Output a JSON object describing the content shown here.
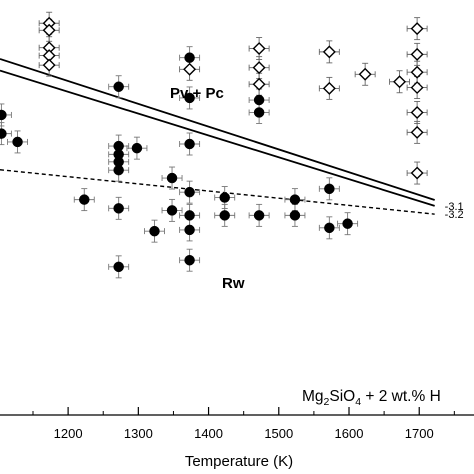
{
  "chart_data": {
    "type": "scatter",
    "title": "",
    "xlabel": "Temperature (K)",
    "ylabel": "",
    "xlim": [
      1103,
      1778
    ],
    "ylim": [
      0,
      1
    ],
    "x_ticks": [
      1200,
      1300,
      1400,
      1500,
      1600,
      1700
    ],
    "grid": false,
    "legend": "none",
    "annotations": {
      "region_upper": "Pv + Pc",
      "region_lower": "Rw",
      "composition_prefix": "Mg",
      "composition_sub1": "2",
      "composition_mid": "SiO",
      "composition_sub2": "4",
      "composition_suffix": " + 2 wt.% H"
    },
    "lines": [
      {
        "label": "-3.1",
        "style": "solid",
        "points": [
          [
            1103,
            0.83
          ],
          [
            1722,
            0.504
          ]
        ]
      },
      {
        "label": "",
        "style": "solid",
        "points": [
          [
            1103,
            0.858
          ],
          [
            1722,
            0.518
          ]
        ]
      },
      {
        "label": "-3.2",
        "style": "dashed",
        "points": [
          [
            1103,
            0.591
          ],
          [
            1722,
            0.484
          ]
        ]
      }
    ],
    "series": [
      {
        "marker": "filled-circle",
        "color": "#000000",
        "points": [
          [
            1105,
            0.723
          ],
          [
            1105,
            0.678
          ],
          [
            1128,
            0.658
          ],
          [
            1223,
            0.519
          ],
          [
            1272,
            0.791
          ],
          [
            1272,
            0.648
          ],
          [
            1272,
            0.628
          ],
          [
            1272,
            0.61
          ],
          [
            1272,
            0.59
          ],
          [
            1272,
            0.498
          ],
          [
            1272,
            0.357
          ],
          [
            1298,
            0.643
          ],
          [
            1323,
            0.443
          ],
          [
            1348,
            0.571
          ],
          [
            1348,
            0.493
          ],
          [
            1373,
            0.861
          ],
          [
            1373,
            0.764
          ],
          [
            1373,
            0.653
          ],
          [
            1373,
            0.537
          ],
          [
            1373,
            0.481
          ],
          [
            1373,
            0.446
          ],
          [
            1373,
            0.373
          ],
          [
            1423,
            0.524
          ],
          [
            1423,
            0.481
          ],
          [
            1472,
            0.759
          ],
          [
            1472,
            0.729
          ],
          [
            1472,
            0.481
          ],
          [
            1523,
            0.519
          ],
          [
            1523,
            0.481
          ],
          [
            1572,
            0.545
          ],
          [
            1572,
            0.451
          ],
          [
            1598,
            0.461
          ]
        ]
      },
      {
        "marker": "open-diamond",
        "color": "#000000",
        "points": [
          [
            1173,
            0.944
          ],
          [
            1173,
            0.927
          ],
          [
            1173,
            0.885
          ],
          [
            1173,
            0.866
          ],
          [
            1173,
            0.843
          ],
          [
            1373,
            0.833
          ],
          [
            1472,
            0.883
          ],
          [
            1472,
            0.837
          ],
          [
            1472,
            0.797
          ],
          [
            1572,
            0.875
          ],
          [
            1572,
            0.787
          ],
          [
            1623,
            0.821
          ],
          [
            1672,
            0.803
          ],
          [
            1697,
            0.931
          ],
          [
            1697,
            0.869
          ],
          [
            1697,
            0.826
          ],
          [
            1697,
            0.789
          ],
          [
            1697,
            0.729
          ],
          [
            1697,
            0.681
          ],
          [
            1697,
            0.583
          ]
        ]
      }
    ]
  }
}
